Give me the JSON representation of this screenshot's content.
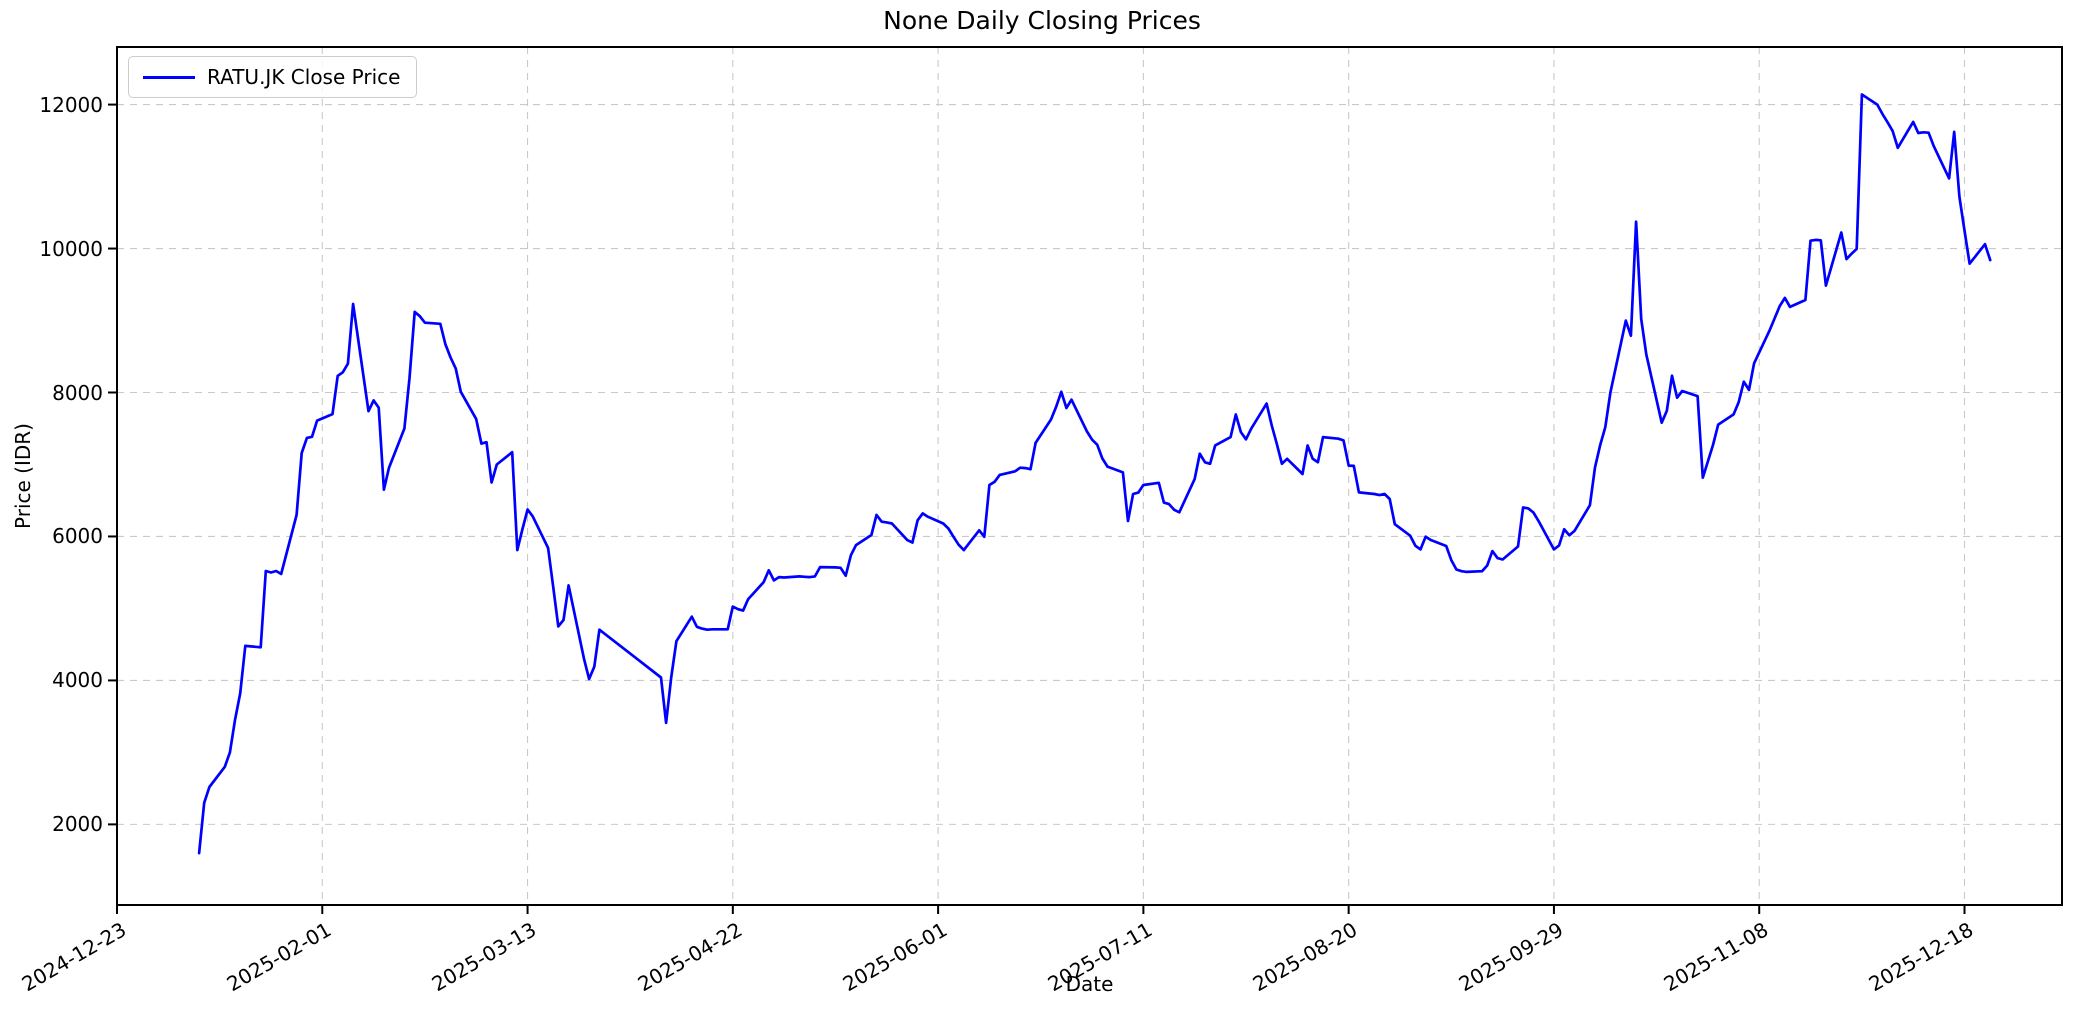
{
  "title": "None Daily Closing Prices",
  "axes": {
    "xlabel": "Date",
    "ylabel": "Price (IDR)"
  },
  "legend": {
    "label": "RATU.JK Close Price"
  },
  "style": {
    "line_color": "#0000ff",
    "grid_color": "#c9c9c9",
    "spine_color": "#000000",
    "background": "#ffffff"
  },
  "chart_data": {
    "type": "line",
    "title": "None Daily Closing Prices",
    "xlabel": "Date",
    "ylabel": "Price (IDR)",
    "grid": true,
    "legend_position": "upper left",
    "x_ticks": [
      "2024-12-23",
      "2025-02-01",
      "2025-03-13",
      "2025-04-22",
      "2025-06-01",
      "2025-07-11",
      "2025-08-20",
      "2025-09-29",
      "2025-11-08",
      "2025-12-18"
    ],
    "y_ticks": [
      2000,
      4000,
      6000,
      8000,
      10000,
      12000
    ],
    "xlim": [
      "2024-12-23",
      "2026-01-06"
    ],
    "ylim": [
      880,
      12800
    ],
    "series": [
      {
        "name": "RATU.JK Close Price",
        "color": "#0000ff",
        "dates": [
          "2025-01-08",
          "2025-01-09",
          "2025-01-10",
          "2025-01-13",
          "2025-01-14",
          "2025-01-15",
          "2025-01-16",
          "2025-01-17",
          "2025-01-20",
          "2025-01-21",
          "2025-01-22",
          "2025-01-23",
          "2025-01-24",
          "2025-01-27",
          "2025-01-28",
          "2025-01-29",
          "2025-01-30",
          "2025-01-31",
          "2025-02-03",
          "2025-02-04",
          "2025-02-05",
          "2025-02-06",
          "2025-02-07",
          "2025-02-10",
          "2025-02-11",
          "2025-02-12",
          "2025-02-13",
          "2025-02-14",
          "2025-02-17",
          "2025-02-18",
          "2025-02-19",
          "2025-02-20",
          "2025-02-21",
          "2025-02-24",
          "2025-02-25",
          "2025-02-26",
          "2025-02-27",
          "2025-02-28",
          "2025-03-03",
          "2025-03-04",
          "2025-03-05",
          "2025-03-06",
          "2025-03-07",
          "2025-03-10",
          "2025-03-11",
          "2025-03-12",
          "2025-03-13",
          "2025-03-14",
          "2025-03-17",
          "2025-03-18",
          "2025-03-19",
          "2025-03-20",
          "2025-03-21",
          "2025-03-24",
          "2025-03-25",
          "2025-03-26",
          "2025-03-27",
          "2025-04-08",
          "2025-04-09",
          "2025-04-10",
          "2025-04-11",
          "2025-04-14",
          "2025-04-15",
          "2025-04-16",
          "2025-04-17",
          "2025-04-18",
          "2025-04-21",
          "2025-04-22",
          "2025-04-23",
          "2025-04-24",
          "2025-04-25",
          "2025-04-28",
          "2025-04-29",
          "2025-04-30",
          "2025-05-01",
          "2025-05-02",
          "2025-05-05",
          "2025-05-06",
          "2025-05-07",
          "2025-05-08",
          "2025-05-09",
          "2025-05-12",
          "2025-05-13",
          "2025-05-14",
          "2025-05-15",
          "2025-05-16",
          "2025-05-19",
          "2025-05-20",
          "2025-05-21",
          "2025-05-22",
          "2025-05-23",
          "2025-05-26",
          "2025-05-27",
          "2025-05-28",
          "2025-05-29",
          "2025-05-30",
          "2025-06-02",
          "2025-06-03",
          "2025-06-04",
          "2025-06-05",
          "2025-06-06",
          "2025-06-09",
          "2025-06-10",
          "2025-06-11",
          "2025-06-12",
          "2025-06-13",
          "2025-06-16",
          "2025-06-17",
          "2025-06-18",
          "2025-06-19",
          "2025-06-20",
          "2025-06-23",
          "2025-06-24",
          "2025-06-25",
          "2025-06-26",
          "2025-06-27",
          "2025-06-30",
          "2025-07-01",
          "2025-07-02",
          "2025-07-03",
          "2025-07-04",
          "2025-07-07",
          "2025-07-08",
          "2025-07-09",
          "2025-07-10",
          "2025-07-11",
          "2025-07-14",
          "2025-07-15",
          "2025-07-16",
          "2025-07-17",
          "2025-07-18",
          "2025-07-21",
          "2025-07-22",
          "2025-07-23",
          "2025-07-24",
          "2025-07-25",
          "2025-07-28",
          "2025-07-29",
          "2025-07-30",
          "2025-07-31",
          "2025-08-01",
          "2025-08-04",
          "2025-08-05",
          "2025-08-06",
          "2025-08-07",
          "2025-08-08",
          "2025-08-11",
          "2025-08-12",
          "2025-08-13",
          "2025-08-14",
          "2025-08-15",
          "2025-08-18",
          "2025-08-19",
          "2025-08-20",
          "2025-08-21",
          "2025-08-22",
          "2025-08-25",
          "2025-08-26",
          "2025-08-27",
          "2025-08-28",
          "2025-08-29",
          "2025-09-01",
          "2025-09-02",
          "2025-09-03",
          "2025-09-04",
          "2025-09-05",
          "2025-09-08",
          "2025-09-09",
          "2025-09-10",
          "2025-09-11",
          "2025-09-12",
          "2025-09-15",
          "2025-09-16",
          "2025-09-17",
          "2025-09-18",
          "2025-09-19",
          "2025-09-22",
          "2025-09-23",
          "2025-09-24",
          "2025-09-25",
          "2025-09-26",
          "2025-09-29",
          "2025-09-30",
          "2025-10-01",
          "2025-10-02",
          "2025-10-03",
          "2025-10-06",
          "2025-10-07",
          "2025-10-08",
          "2025-10-09",
          "2025-10-10",
          "2025-10-13",
          "2025-10-14",
          "2025-10-15",
          "2025-10-16",
          "2025-10-17",
          "2025-10-20",
          "2025-10-21",
          "2025-10-22",
          "2025-10-23",
          "2025-10-24",
          "2025-10-27",
          "2025-10-28",
          "2025-10-29",
          "2025-10-30",
          "2025-10-31",
          "2025-11-03",
          "2025-11-04",
          "2025-11-05",
          "2025-11-06",
          "2025-11-07",
          "2025-11-10",
          "2025-11-11",
          "2025-11-12",
          "2025-11-13",
          "2025-11-14",
          "2025-11-17",
          "2025-11-18",
          "2025-11-19",
          "2025-11-20",
          "2025-11-21",
          "2025-11-24",
          "2025-11-25",
          "2025-11-26",
          "2025-11-27",
          "2025-11-28",
          "2025-12-01",
          "2025-12-02",
          "2025-12-03",
          "2025-12-04",
          "2025-12-05",
          "2025-12-08",
          "2025-12-09",
          "2025-12-10",
          "2025-12-11",
          "2025-12-12",
          "2025-12-15",
          "2025-12-16",
          "2025-12-17",
          "2025-12-18",
          "2025-12-19",
          "2025-12-22",
          "2025-12-23"
        ],
        "values": [
          1600,
          2300,
          2520,
          2800,
          3000,
          3450,
          3820,
          4480,
          4460,
          5520,
          5500,
          5520,
          5480,
          6300,
          7160,
          7370,
          7385,
          7610,
          7700,
          8230,
          8280,
          8400,
          9230,
          7740,
          7890,
          7790,
          6650,
          6955,
          7500,
          8200,
          9120,
          9060,
          8970,
          8955,
          8670,
          8485,
          8335,
          8010,
          7630,
          7290,
          7310,
          6750,
          7000,
          7170,
          5810,
          6100,
          6375,
          6280,
          5840,
          5300,
          4750,
          4840,
          5320,
          4300,
          4020,
          4190,
          4705,
          4040,
          3410,
          4040,
          4545,
          4885,
          4745,
          4720,
          4705,
          4710,
          4710,
          5025,
          4990,
          4970,
          5130,
          5365,
          5530,
          5390,
          5435,
          5430,
          5445,
          5440,
          5435,
          5445,
          5575,
          5570,
          5565,
          5455,
          5740,
          5880,
          6020,
          6300,
          6205,
          6195,
          6180,
          5950,
          5915,
          6225,
          6320,
          6275,
          6180,
          6110,
          5995,
          5885,
          5810,
          6085,
          5995,
          6715,
          6760,
          6855,
          6905,
          6955,
          6950,
          6935,
          7300,
          7625,
          7800,
          8010,
          7785,
          7900,
          7460,
          7345,
          7275,
          7085,
          6970,
          6890,
          6215,
          6590,
          6610,
          6715,
          6745,
          6470,
          6450,
          6370,
          6335,
          6800,
          7150,
          7030,
          7010,
          7265,
          7380,
          7695,
          7450,
          7350,
          7497,
          7846,
          7544,
          7288,
          7009,
          7079,
          6868,
          7264,
          7079,
          7032,
          7381,
          7358,
          7334,
          6985,
          6980,
          6612,
          6590,
          6575,
          6590,
          6520,
          6170,
          6010,
          5870,
          5820,
          5997,
          5951,
          5867,
          5671,
          5541,
          5517,
          5508,
          5517,
          5596,
          5797,
          5700,
          5680,
          5860,
          6403,
          6390,
          6333,
          6216,
          5820,
          5876,
          6100,
          6016,
          6077,
          6435,
          6960,
          7265,
          7520,
          8000,
          8999,
          8789,
          10373,
          9022,
          8530,
          7581,
          7744,
          8233,
          7928,
          8021,
          7950,
          6816,
          7043,
          7270,
          7554,
          7696,
          7866,
          8150,
          8036,
          8406,
          8860,
          9030,
          9200,
          9314,
          9189,
          9285,
          10109,
          10120,
          10115,
          9485,
          10223,
          9854,
          9928,
          9995,
          12140,
          12000,
          11870,
          11755,
          11635,
          11400,
          11760,
          11605,
          11615,
          11610,
          11425,
          10975,
          11620,
          10720,
          10250,
          9790,
          10060,
          9840
        ]
      }
    ]
  }
}
